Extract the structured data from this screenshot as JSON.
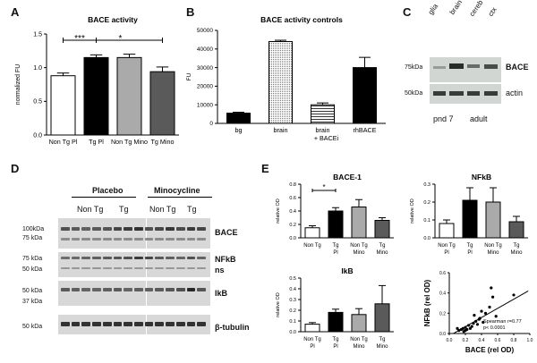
{
  "panels": {
    "A": "A",
    "B": "B",
    "C": "C",
    "D": "D",
    "E": "E"
  },
  "chart_data": [
    {
      "id": "A",
      "type": "bar",
      "title": "BACE activity",
      "ylabel": "normalized FU",
      "ylim": [
        0,
        1.5
      ],
      "yticks": [
        "0.0",
        "0.5",
        "1.0",
        "1.5"
      ],
      "categories": [
        "Non Tg Pl",
        "Tg Pl",
        "Non Tg Mino",
        "Tg Mino"
      ],
      "values": [
        0.88,
        1.15,
        1.15,
        0.94
      ],
      "errors": [
        0.04,
        0.04,
        0.05,
        0.07
      ],
      "fills": [
        "#ffffff",
        "#000000",
        "#aaaaaa",
        "#5a5a5a"
      ],
      "significance": [
        "***",
        "*"
      ]
    },
    {
      "id": "B",
      "type": "bar",
      "title": "BACE activity controls",
      "ylabel": "FU",
      "ylim": [
        0,
        50000
      ],
      "yticks": [
        "0",
        "10000",
        "20000",
        "30000",
        "40000",
        "50000"
      ],
      "categories": [
        "bg",
        "brain",
        "brain",
        "rhBACE"
      ],
      "category_sub": [
        "",
        "",
        "+ BACEi",
        ""
      ],
      "values": [
        5500,
        44000,
        10000,
        30000
      ],
      "errors": [
        500,
        700,
        1000,
        5500
      ]
    },
    {
      "id": "E1",
      "type": "bar",
      "title": "BACE-1",
      "ylabel": "relative OD",
      "ylim": [
        0,
        0.8
      ],
      "yticks": [
        "0.0",
        "0.2",
        "0.4",
        "0.6",
        "0.8"
      ],
      "cat1": [
        "Non Tg",
        "Tg",
        "Non Tg",
        "Tg"
      ],
      "cat2": [
        "",
        "Pl",
        "Mino",
        "Mino"
      ],
      "values": [
        0.15,
        0.4,
        0.46,
        0.26
      ],
      "errors": [
        0.03,
        0.05,
        0.11,
        0.04
      ],
      "significance": [
        "*"
      ]
    },
    {
      "id": "E2",
      "type": "bar",
      "title": "NFkB",
      "ylabel": "relative OD",
      "ylim": [
        0,
        0.3
      ],
      "yticks": [
        "0.0",
        "0.1",
        "0.2",
        "0.3"
      ],
      "cat1": [
        "Non Tg",
        "Tg",
        "Non Tg",
        "Tg"
      ],
      "cat2": [
        "Pl",
        "Pl",
        "Mino",
        "Mino"
      ],
      "values": [
        0.08,
        0.21,
        0.2,
        0.09
      ],
      "errors": [
        0.02,
        0.07,
        0.08,
        0.03
      ]
    },
    {
      "id": "E3",
      "type": "bar",
      "title": "IkB",
      "ylabel": "relative OD",
      "ylim": [
        0,
        0.5
      ],
      "yticks": [
        "0.0",
        "0.1",
        "0.2",
        "0.3",
        "0.4",
        "0.5"
      ],
      "cat1": [
        "Non Tg",
        "Tg",
        "Non Tg",
        "Tg"
      ],
      "cat2": [
        "Pl",
        "Pl",
        "Mino",
        "Mino"
      ],
      "values": [
        0.07,
        0.18,
        0.16,
        0.26
      ],
      "errors": [
        0.015,
        0.03,
        0.055,
        0.17
      ]
    },
    {
      "id": "E4",
      "type": "scatter",
      "xlabel": "BACE (rel OD)",
      "ylabel": "NFkB (rel OD)",
      "xlim": [
        0,
        1.0
      ],
      "ylim": [
        0,
        0.6
      ],
      "xticks": [
        "0.0",
        "0.2",
        "0.4",
        "0.6",
        "0.8",
        "1.0"
      ],
      "yticks": [
        "0.0",
        "0.2",
        "0.4",
        "0.6"
      ],
      "points": [
        [
          0.1,
          0.05
        ],
        [
          0.12,
          0.03
        ],
        [
          0.15,
          0.04
        ],
        [
          0.17,
          0.05
        ],
        [
          0.18,
          0.02
        ],
        [
          0.2,
          0.06
        ],
        [
          0.2,
          0.03
        ],
        [
          0.22,
          0.04
        ],
        [
          0.24,
          0.08
        ],
        [
          0.26,
          0.05
        ],
        [
          0.28,
          0.07
        ],
        [
          0.3,
          0.1
        ],
        [
          0.31,
          0.18
        ],
        [
          0.33,
          0.12
        ],
        [
          0.35,
          0.09
        ],
        [
          0.37,
          0.14
        ],
        [
          0.38,
          0.15
        ],
        [
          0.4,
          0.22
        ],
        [
          0.42,
          0.11
        ],
        [
          0.45,
          0.2
        ],
        [
          0.5,
          0.26
        ],
        [
          0.52,
          0.45
        ],
        [
          0.54,
          0.36
        ],
        [
          0.58,
          0.17
        ],
        [
          0.8,
          0.38
        ]
      ],
      "fit": [
        [
          0.05,
          0.0
        ],
        [
          0.98,
          0.42
        ]
      ],
      "annotation": [
        "Spearman r=0.77",
        "p< 0.0001"
      ]
    }
  ],
  "blot_c": {
    "lanes": [
      "glia",
      "brain",
      "cereb",
      "ctx"
    ],
    "markers": [
      "75kDa",
      "50kDa"
    ],
    "bands": [
      "BACE",
      "actin"
    ],
    "groups": [
      "pnd 7",
      "adult"
    ]
  },
  "blot_d": {
    "groups": [
      "Placebo",
      "Minocycline"
    ],
    "subgroups": [
      "Non Tg",
      "Tg",
      "Non Tg",
      "Tg"
    ],
    "rows": [
      {
        "markers": [
          "100kDa",
          "75 kDa"
        ],
        "label": "BACE",
        "label2": ""
      },
      {
        "markers": [
          "75 kDa",
          "50 kDa"
        ],
        "label": "NFkB",
        "label2": "ns"
      },
      {
        "markers": [
          "50 kDa",
          "37 kDa"
        ],
        "label": "IkB",
        "label2": ""
      },
      {
        "markers": [
          "50 kDa"
        ],
        "label": "β-tubulin",
        "label2": ""
      }
    ]
  },
  "colors": {
    "nontg": "#ffffff",
    "tgpl": "#000000",
    "nontgmino": "#aaaaaa",
    "tgmino": "#5a5a5a",
    "blot_bg": "#dcdcdc",
    "band": "#3a3a3a"
  }
}
